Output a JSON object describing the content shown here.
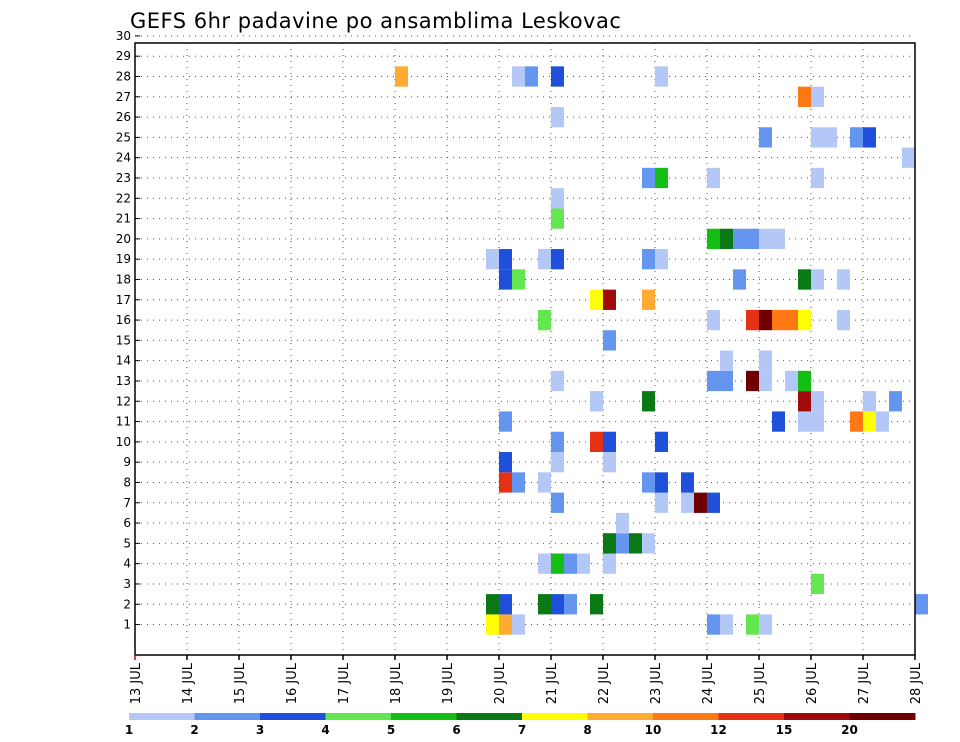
{
  "chart_data": {
    "type": "heatmap",
    "title": "GEFS 6hr padavine po ansamblima Leskovac",
    "xlabel": "",
    "ylabel": "",
    "x_ticks": [
      "13 JUL",
      "14 JUL",
      "15 JUL",
      "16 JUL",
      "17 JUL",
      "18 JUL",
      "19 JUL",
      "20 JUL",
      "21 JUL",
      "22 JUL",
      "23 JUL",
      "24 JUL",
      "25 JUL",
      "26 JUL",
      "27 JUL",
      "28 JUL"
    ],
    "x_range_days": [
      13,
      28
    ],
    "time_step_hours": 6,
    "y_ticks": [
      1,
      2,
      3,
      4,
      5,
      6,
      7,
      8,
      9,
      10,
      11,
      12,
      13,
      14,
      15,
      16,
      17,
      18,
      19,
      20,
      21,
      22,
      23,
      24,
      25,
      26,
      27,
      28,
      29,
      30
    ],
    "y_range": [
      0,
      30
    ],
    "grid": true,
    "legend_position": "bottom",
    "colorbar": {
      "ticks": [
        "1",
        "2",
        "3",
        "4",
        "5",
        "6",
        "7",
        "8",
        "10",
        "12",
        "15",
        "20"
      ],
      "colors": [
        "#b4c8f8",
        "#6496f0",
        "#1e50dc",
        "#64e650",
        "#14be14",
        "#0a7814",
        "#ffff00",
        "#ffaa32",
        "#ff7814",
        "#e63214",
        "#a00a0a",
        "#6e0000"
      ]
    },
    "series": [
      {
        "member": 1,
        "cells": [
          {
            "day": 19.75,
            "level": 7
          },
          {
            "day": 20.0,
            "level": 8
          },
          {
            "day": 20.25,
            "level": 1
          },
          {
            "day": 24.0,
            "level": 2
          },
          {
            "day": 24.25,
            "level": 1
          },
          {
            "day": 24.75,
            "level": 4
          },
          {
            "day": 25.0,
            "level": 1
          }
        ]
      },
      {
        "member": 2,
        "cells": [
          {
            "day": 19.75,
            "level": 6
          },
          {
            "day": 20.0,
            "level": 3
          },
          {
            "day": 20.75,
            "level": 6
          },
          {
            "day": 21.0,
            "level": 3
          },
          {
            "day": 21.25,
            "level": 2
          },
          {
            "day": 21.75,
            "level": 6
          },
          {
            "day": 28.0,
            "level": 2
          }
        ]
      },
      {
        "member": 3,
        "cells": [
          {
            "day": 26.0,
            "level": 4
          }
        ]
      },
      {
        "member": 4,
        "cells": [
          {
            "day": 20.75,
            "level": 1
          },
          {
            "day": 21.0,
            "level": 5
          },
          {
            "day": 21.25,
            "level": 2
          },
          {
            "day": 21.5,
            "level": 1
          },
          {
            "day": 22.0,
            "level": 1
          }
        ]
      },
      {
        "member": 5,
        "cells": [
          {
            "day": 22.0,
            "level": 6
          },
          {
            "day": 22.25,
            "level": 2
          },
          {
            "day": 22.5,
            "level": 6
          },
          {
            "day": 22.75,
            "level": 1
          }
        ]
      },
      {
        "member": 6,
        "cells": [
          {
            "day": 22.25,
            "level": 1
          }
        ]
      },
      {
        "member": 7,
        "cells": [
          {
            "day": 21.0,
            "level": 2
          },
          {
            "day": 23.0,
            "level": 1
          },
          {
            "day": 23.5,
            "level": 1
          },
          {
            "day": 23.75,
            "level": 12
          },
          {
            "day": 24.0,
            "level": 3
          }
        ]
      },
      {
        "member": 8,
        "cells": [
          {
            "day": 20.0,
            "level": 10
          },
          {
            "day": 20.25,
            "level": 2
          },
          {
            "day": 20.75,
            "level": 1
          },
          {
            "day": 22.75,
            "level": 2
          },
          {
            "day": 23.0,
            "level": 3
          },
          {
            "day": 23.5,
            "level": 3
          }
        ]
      },
      {
        "member": 9,
        "cells": [
          {
            "day": 20.0,
            "level": 3
          },
          {
            "day": 21.0,
            "level": 1
          },
          {
            "day": 22.0,
            "level": 1
          }
        ]
      },
      {
        "member": 10,
        "cells": [
          {
            "day": 21.0,
            "level": 2
          },
          {
            "day": 21.75,
            "level": 10
          },
          {
            "day": 22.0,
            "level": 3
          },
          {
            "day": 23.0,
            "level": 3
          }
        ]
      },
      {
        "member": 11,
        "cells": [
          {
            "day": 20.0,
            "level": 2
          },
          {
            "day": 25.25,
            "level": 3
          },
          {
            "day": 25.75,
            "level": 1
          },
          {
            "day": 26.0,
            "level": 1
          },
          {
            "day": 26.75,
            "level": 9
          },
          {
            "day": 27.0,
            "level": 7
          },
          {
            "day": 27.25,
            "level": 1
          }
        ]
      },
      {
        "member": 12,
        "cells": [
          {
            "day": 21.75,
            "level": 1
          },
          {
            "day": 22.75,
            "level": 6
          },
          {
            "day": 25.75,
            "level": 11
          },
          {
            "day": 26.0,
            "level": 1
          },
          {
            "day": 27.0,
            "level": 1
          },
          {
            "day": 27.5,
            "level": 2
          }
        ]
      },
      {
        "member": 13,
        "cells": [
          {
            "day": 21.0,
            "level": 1
          },
          {
            "day": 24.0,
            "level": 2
          },
          {
            "day": 24.25,
            "level": 2
          },
          {
            "day": 24.75,
            "level": 12
          },
          {
            "day": 25.0,
            "level": 1
          },
          {
            "day": 25.5,
            "level": 1
          },
          {
            "day": 25.75,
            "level": 5
          }
        ]
      },
      {
        "member": 14,
        "cells": [
          {
            "day": 24.25,
            "level": 1
          },
          {
            "day": 25.0,
            "level": 1
          }
        ]
      },
      {
        "member": 15,
        "cells": [
          {
            "day": 22.0,
            "level": 2
          }
        ]
      },
      {
        "member": 16,
        "cells": [
          {
            "day": 20.75,
            "level": 4
          },
          {
            "day": 24.0,
            "level": 1
          },
          {
            "day": 24.75,
            "level": 10
          },
          {
            "day": 25.0,
            "level": 12
          },
          {
            "day": 25.25,
            "level": 9
          },
          {
            "day": 25.5,
            "level": 9
          },
          {
            "day": 25.75,
            "level": 7
          },
          {
            "day": 26.5,
            "level": 1
          }
        ]
      },
      {
        "member": 17,
        "cells": [
          {
            "day": 21.75,
            "level": 7
          },
          {
            "day": 22.0,
            "level": 11
          },
          {
            "day": 22.75,
            "level": 8
          }
        ]
      },
      {
        "member": 18,
        "cells": [
          {
            "day": 20.0,
            "level": 3
          },
          {
            "day": 20.25,
            "level": 4
          },
          {
            "day": 24.5,
            "level": 2
          },
          {
            "day": 25.75,
            "level": 6
          },
          {
            "day": 26.0,
            "level": 1
          },
          {
            "day": 26.5,
            "level": 1
          }
        ]
      },
      {
        "member": 19,
        "cells": [
          {
            "day": 19.75,
            "level": 1
          },
          {
            "day": 20.0,
            "level": 3
          },
          {
            "day": 20.75,
            "level": 1
          },
          {
            "day": 21.0,
            "level": 3
          },
          {
            "day": 22.75,
            "level": 2
          },
          {
            "day": 23.0,
            "level": 1
          }
        ]
      },
      {
        "member": 20,
        "cells": [
          {
            "day": 24.0,
            "level": 5
          },
          {
            "day": 24.25,
            "level": 6
          },
          {
            "day": 24.5,
            "level": 2
          },
          {
            "day": 24.75,
            "level": 2
          },
          {
            "day": 25.0,
            "level": 1
          },
          {
            "day": 25.25,
            "level": 1
          }
        ]
      },
      {
        "member": 21,
        "cells": [
          {
            "day": 21.0,
            "level": 4
          }
        ]
      },
      {
        "member": 22,
        "cells": [
          {
            "day": 21.0,
            "level": 1
          }
        ]
      },
      {
        "member": 23,
        "cells": [
          {
            "day": 22.75,
            "level": 2
          },
          {
            "day": 23.0,
            "level": 5
          },
          {
            "day": 24.0,
            "level": 1
          },
          {
            "day": 26.0,
            "level": 1
          }
        ]
      },
      {
        "member": 24,
        "cells": [
          {
            "day": 27.75,
            "level": 1
          }
        ]
      },
      {
        "member": 25,
        "cells": [
          {
            "day": 25.0,
            "level": 2
          },
          {
            "day": 26.0,
            "level": 1
          },
          {
            "day": 26.25,
            "level": 1
          },
          {
            "day": 26.75,
            "level": 2
          },
          {
            "day": 27.0,
            "level": 3
          }
        ]
      },
      {
        "member": 26,
        "cells": [
          {
            "day": 21.0,
            "level": 1
          }
        ]
      },
      {
        "member": 27,
        "cells": [
          {
            "day": 25.75,
            "level": 9
          },
          {
            "day": 26.0,
            "level": 1
          }
        ]
      },
      {
        "member": 28,
        "cells": [
          {
            "day": 18.0,
            "level": 8
          },
          {
            "day": 20.25,
            "level": 1
          },
          {
            "day": 20.5,
            "level": 2
          },
          {
            "day": 21.0,
            "level": 3
          },
          {
            "day": 23.0,
            "level": 1
          }
        ]
      }
    ]
  }
}
